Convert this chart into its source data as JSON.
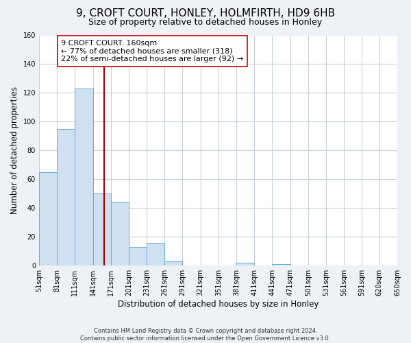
{
  "title": "9, CROFT COURT, HONLEY, HOLMFIRTH, HD9 6HB",
  "subtitle": "Size of property relative to detached houses in Honley",
  "xlabel": "Distribution of detached houses by size in Honley",
  "ylabel": "Number of detached properties",
  "bin_edges": [
    51,
    81,
    111,
    141,
    171,
    201,
    231,
    261,
    291,
    321,
    351,
    381,
    411,
    441,
    471,
    501,
    531,
    561,
    591,
    620,
    650
  ],
  "bar_heights": [
    65,
    95,
    123,
    50,
    44,
    13,
    16,
    3,
    0,
    0,
    0,
    2,
    0,
    1,
    0,
    0,
    0,
    0,
    0,
    0
  ],
  "bar_color": "#cfe0f0",
  "bar_edgecolor": "#6aaad4",
  "vline_x": 160,
  "vline_color": "#990000",
  "annotation_line1": "9 CROFT COURT: 160sqm",
  "annotation_line2": "← 77% of detached houses are smaller (318)",
  "annotation_line3": "22% of semi-detached houses are larger (92) →",
  "ylim": [
    0,
    160
  ],
  "yticks": [
    0,
    20,
    40,
    60,
    80,
    100,
    120,
    140,
    160
  ],
  "tick_labels": [
    "51sqm",
    "81sqm",
    "111sqm",
    "141sqm",
    "171sqm",
    "201sqm",
    "231sqm",
    "261sqm",
    "291sqm",
    "321sqm",
    "351sqm",
    "381sqm",
    "411sqm",
    "441sqm",
    "471sqm",
    "501sqm",
    "531sqm",
    "561sqm",
    "591sqm",
    "620sqm",
    "650sqm"
  ],
  "footnote1": "Contains HM Land Registry data © Crown copyright and database right 2024.",
  "footnote2": "Contains public sector information licensed under the Open Government Licence v3.0.",
  "bg_color": "#eef2f7",
  "plot_bg_color": "#ffffff",
  "grid_color": "#c8d0da",
  "title_fontsize": 11,
  "subtitle_fontsize": 9,
  "xlabel_fontsize": 8.5,
  "ylabel_fontsize": 8.5,
  "tick_fontsize": 7,
  "annot_fontsize": 8,
  "footnote_fontsize": 6
}
